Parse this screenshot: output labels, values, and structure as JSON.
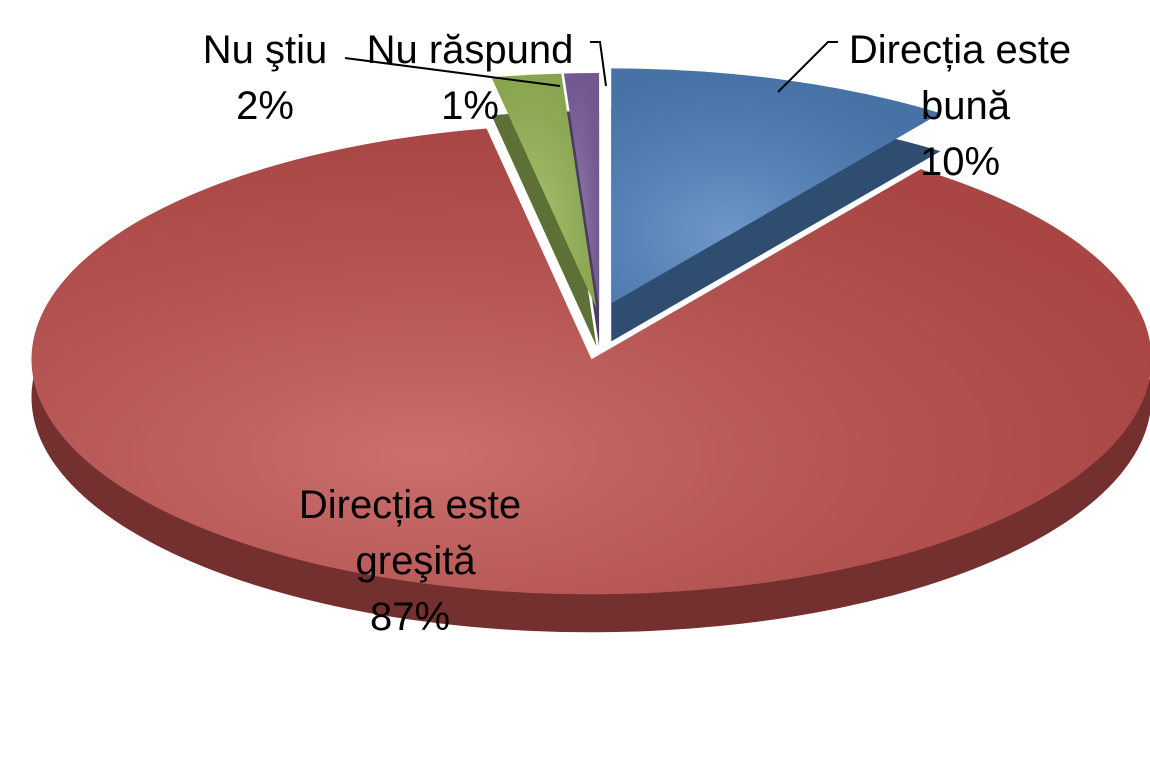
{
  "chart_data": {
    "type": "pie",
    "categories": [
      "Direcția este bună",
      "Direcția este greşită",
      "Nu ştiu",
      "Nu răspund"
    ],
    "values": [
      10,
      87,
      2,
      1
    ],
    "value_labels": [
      "10%",
      "87%",
      "2%",
      "1%"
    ],
    "colors": [
      "#4f81bd",
      "#c0504d",
      "#9bbb59",
      "#8064a2"
    ]
  }
}
